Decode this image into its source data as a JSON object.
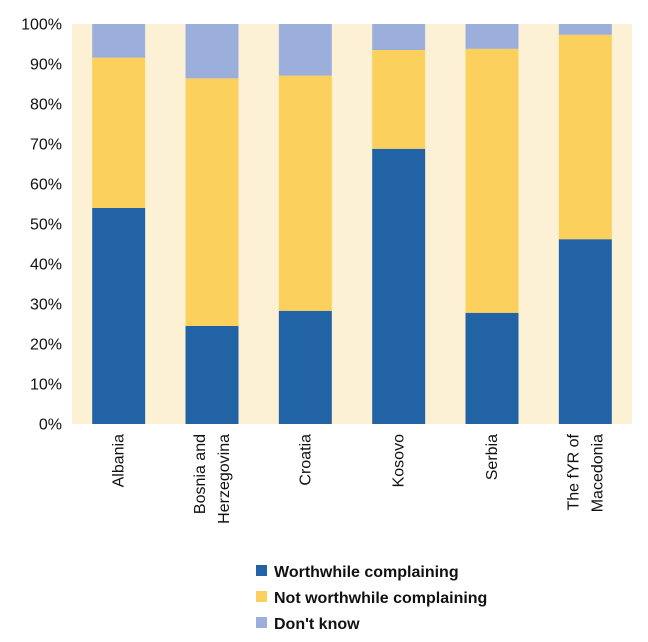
{
  "chart_data": {
    "type": "bar",
    "stacked": true,
    "orientation": "vertical",
    "categories": [
      [
        "Albania"
      ],
      [
        "Bosnia and",
        "Herzegovina"
      ],
      [
        "Croatia"
      ],
      [
        "Kosovo"
      ],
      [
        "Serbia"
      ],
      [
        "The fYR of",
        "Macedonia"
      ]
    ],
    "series": [
      {
        "name": "Worthwhile complaining",
        "color": "#2163a5",
        "values": [
          54,
          24.5,
          28.3,
          68.8,
          27.8,
          46.2
        ]
      },
      {
        "name": "Not worthwhile complaining",
        "color": "#fcd05c",
        "values": [
          37.6,
          61.9,
          58.8,
          24.7,
          66.0,
          51.1
        ]
      },
      {
        "name": "Don't know",
        "color": "#9caedb",
        "values": [
          8.4,
          13.6,
          12.9,
          6.5,
          6.2,
          2.7
        ]
      }
    ],
    "y_ticks": [
      "0%",
      "10%",
      "20%",
      "30%",
      "40%",
      "50%",
      "60%",
      "70%",
      "80%",
      "90%",
      "100%"
    ],
    "ylim": [
      0,
      100
    ],
    "plot_background": "#fcf1d4",
    "grid": false,
    "legend_position": "bottom"
  }
}
